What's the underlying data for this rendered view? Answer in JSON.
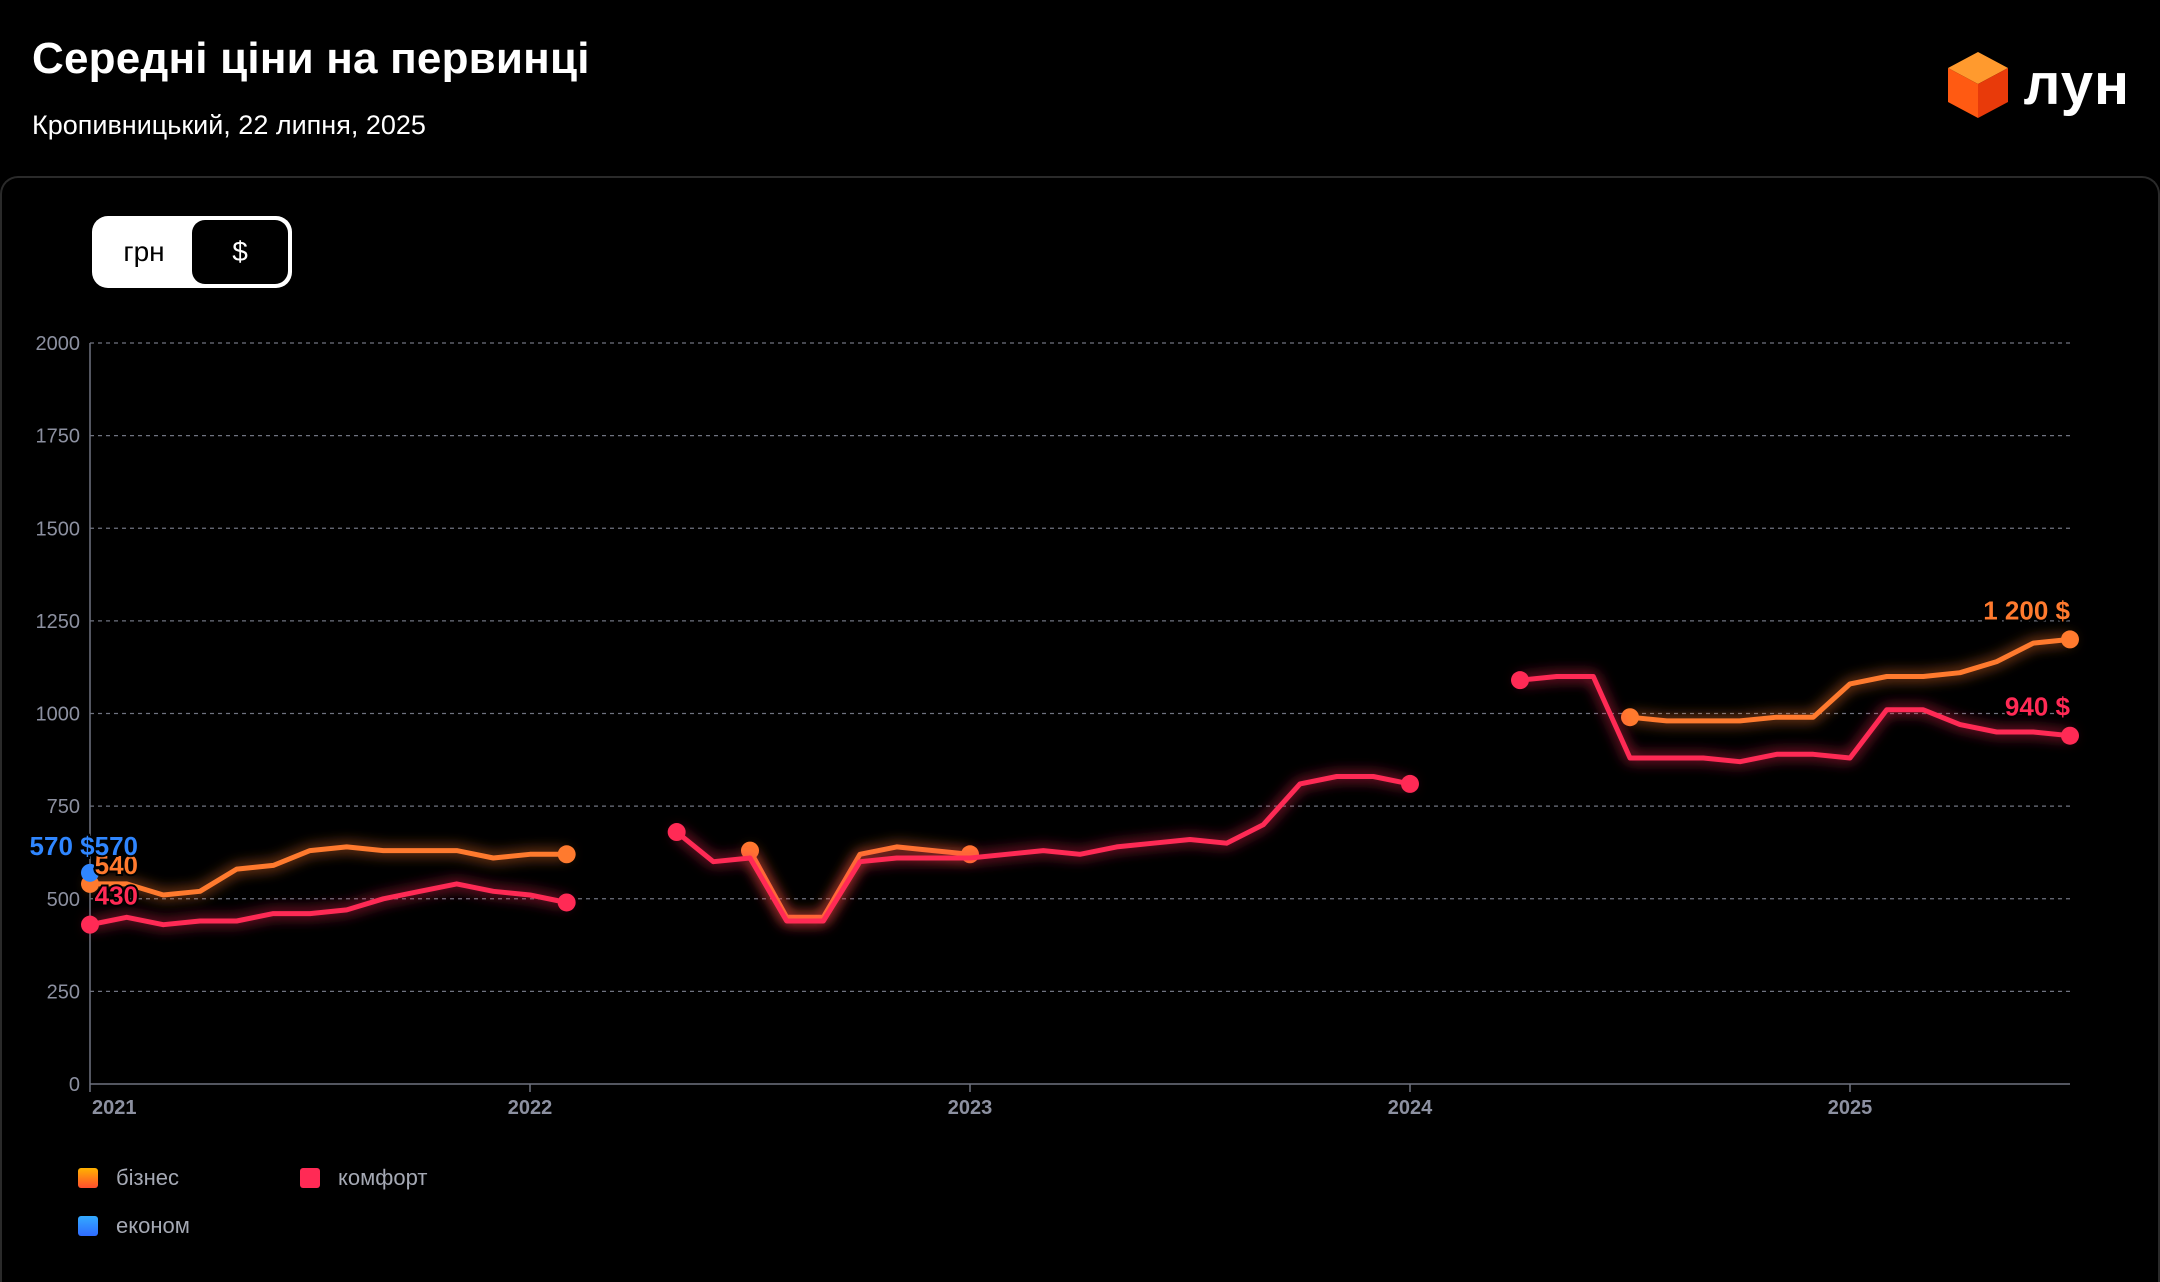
{
  "header": {
    "title": "Середні ціни на первинці",
    "subtitle": "Кропивницький, 22 липня, 2025",
    "logo_text": "лун",
    "logo_icon": "orange-cube-icon"
  },
  "toggle": {
    "options": [
      {
        "label": "грн",
        "active": false
      },
      {
        "label": "$",
        "active": true
      }
    ]
  },
  "chart_data": {
    "type": "line",
    "title": "",
    "xlabel": "",
    "ylabel": "",
    "x_ticks": [
      "2021",
      "2022",
      "2023",
      "2024",
      "2025"
    ],
    "y_ticks": [
      0,
      250,
      500,
      750,
      1000,
      1250,
      1500,
      1750,
      2000
    ],
    "ylim": [
      0,
      2000
    ],
    "xlim": [
      "2021-01",
      "2025-07"
    ],
    "grid": true,
    "legend_position": "bottom-left",
    "series": [
      {
        "name": "бізнес",
        "color": "#ff7a2e",
        "segments": [
          [
            [
              "2021-01",
              540
            ],
            [
              "2021-02",
              540
            ],
            [
              "2021-03",
              510
            ],
            [
              "2021-04",
              520
            ],
            [
              "2021-05",
              580
            ],
            [
              "2021-06",
              590
            ],
            [
              "2021-07",
              630
            ],
            [
              "2021-08",
              640
            ],
            [
              "2021-09",
              630
            ],
            [
              "2021-10",
              630
            ],
            [
              "2021-11",
              630
            ],
            [
              "2021-12",
              610
            ],
            [
              "2022-01",
              620
            ],
            [
              "2022-02",
              620
            ]
          ],
          [
            [
              "2022-07",
              630
            ],
            [
              "2022-08",
              450
            ],
            [
              "2022-09",
              450
            ],
            [
              "2022-10",
              620
            ],
            [
              "2022-11",
              640
            ],
            [
              "2022-12",
              630
            ],
            [
              "2023-01",
              620
            ]
          ],
          [
            [
              "2024-07",
              990
            ],
            [
              "2024-08",
              980
            ],
            [
              "2024-09",
              980
            ],
            [
              "2024-10",
              980
            ],
            [
              "2024-11",
              990
            ],
            [
              "2024-12",
              990
            ],
            [
              "2025-01",
              1080
            ],
            [
              "2025-02",
              1100
            ],
            [
              "2025-03",
              1100
            ],
            [
              "2025-04",
              1110
            ],
            [
              "2025-05",
              1140
            ],
            [
              "2025-06",
              1190
            ],
            [
              "2025-07",
              1200
            ]
          ]
        ],
        "end_label": "1 200 $",
        "start_label": "540"
      },
      {
        "name": "комфорт",
        "color": "#ff2a55",
        "segments": [
          [
            [
              "2021-01",
              430
            ],
            [
              "2021-02",
              450
            ],
            [
              "2021-03",
              430
            ],
            [
              "2021-04",
              440
            ],
            [
              "2021-05",
              440
            ],
            [
              "2021-06",
              460
            ],
            [
              "2021-07",
              460
            ],
            [
              "2021-08",
              470
            ],
            [
              "2021-09",
              500
            ],
            [
              "2021-10",
              520
            ],
            [
              "2021-11",
              540
            ],
            [
              "2021-12",
              520
            ],
            [
              "2022-01",
              510
            ],
            [
              "2022-02",
              490
            ]
          ],
          [
            [
              "2022-05",
              680
            ],
            [
              "2022-06",
              600
            ],
            [
              "2022-07",
              610
            ],
            [
              "2022-08",
              440
            ],
            [
              "2022-09",
              440
            ],
            [
              "2022-10",
              600
            ],
            [
              "2022-11",
              610
            ],
            [
              "2022-12",
              610
            ],
            [
              "2023-01",
              610
            ],
            [
              "2023-02",
              620
            ],
            [
              "2023-03",
              630
            ],
            [
              "2023-04",
              620
            ],
            [
              "2023-05",
              640
            ],
            [
              "2023-06",
              650
            ],
            [
              "2023-07",
              660
            ],
            [
              "2023-08",
              650
            ],
            [
              "2023-09",
              700
            ],
            [
              "2023-10",
              810
            ],
            [
              "2023-11",
              830
            ],
            [
              "2023-12",
              830
            ],
            [
              "2024-01",
              810
            ]
          ],
          [
            [
              "2024-04",
              1090
            ],
            [
              "2024-05",
              1100
            ],
            [
              "2024-06",
              1100
            ],
            [
              "2024-07",
              880
            ],
            [
              "2024-08",
              880
            ],
            [
              "2024-09",
              880
            ],
            [
              "2024-10",
              870
            ],
            [
              "2024-11",
              890
            ],
            [
              "2024-12",
              890
            ],
            [
              "2025-01",
              880
            ],
            [
              "2025-02",
              1010
            ],
            [
              "2025-03",
              1010
            ],
            [
              "2025-04",
              970
            ],
            [
              "2025-05",
              950
            ],
            [
              "2025-06",
              950
            ],
            [
              "2025-07",
              940
            ]
          ]
        ],
        "end_label": "940 $",
        "start_label": "430"
      },
      {
        "name": "економ",
        "color": "#2f86ff",
        "segments": [
          [
            [
              "2021-01",
              570
            ]
          ]
        ],
        "start_label": "570 $570"
      }
    ]
  },
  "legend": {
    "items": [
      {
        "label": "бізнес",
        "colors": [
          "#ffb300",
          "#ff4d2e"
        ]
      },
      {
        "label": "комфорт",
        "colors": [
          "#ff2a55",
          "#ff2a55"
        ]
      },
      {
        "label": "економ",
        "colors": [
          "#33aaff",
          "#2f6bff"
        ]
      }
    ]
  }
}
